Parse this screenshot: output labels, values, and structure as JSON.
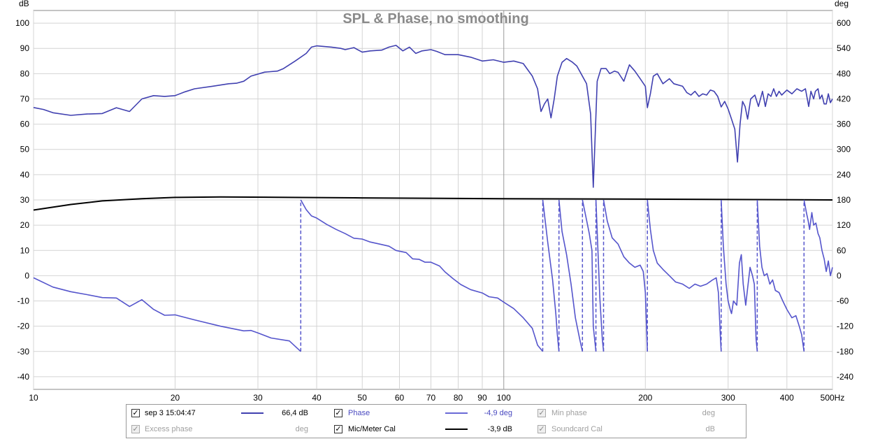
{
  "chart_data": {
    "type": "line",
    "title": "SPL & Phase, no smoothing",
    "y_left_unit": "dB",
    "y_right_unit": "deg",
    "x_unit": "Hz",
    "xscale": "log",
    "xlim": [
      10,
      500
    ],
    "ylim_left": [
      -45,
      105
    ],
    "ylim_right": [
      -270,
      630
    ],
    "grid": true,
    "x_ticks": [
      {
        "v": 10,
        "label": "10"
      },
      {
        "v": 20,
        "label": "20"
      },
      {
        "v": 30,
        "label": "30"
      },
      {
        "v": 40,
        "label": "40"
      },
      {
        "v": 50,
        "label": "50"
      },
      {
        "v": 60,
        "label": "60"
      },
      {
        "v": 70,
        "label": "70"
      },
      {
        "v": 80,
        "label": "80"
      },
      {
        "v": 90,
        "label": "90"
      },
      {
        "v": 100,
        "label": "100"
      },
      {
        "v": 200,
        "label": "200"
      },
      {
        "v": 300,
        "label": "300"
      },
      {
        "v": 400,
        "label": "400"
      },
      {
        "v": 500,
        "label": "500Hz"
      }
    ],
    "y_left_ticks": [
      100,
      90,
      80,
      70,
      60,
      50,
      40,
      30,
      20,
      10,
      0,
      -10,
      -20,
      -30,
      -40
    ],
    "y_right_ticks": [
      600,
      540,
      480,
      420,
      360,
      300,
      240,
      180,
      120,
      60,
      0,
      -60,
      -120,
      -180,
      -240
    ],
    "series": [
      {
        "name": "sep 3 15:04:47",
        "axis": "dB",
        "color": "#4040b0",
        "points": [
          [
            10,
            66.6
          ],
          [
            10.5,
            65.8
          ],
          [
            11,
            64.5
          ],
          [
            12,
            63.5
          ],
          [
            13,
            64
          ],
          [
            14,
            64.2
          ],
          [
            15,
            66.5
          ],
          [
            16,
            65
          ],
          [
            17,
            70
          ],
          [
            18,
            71.3
          ],
          [
            19,
            71
          ],
          [
            20,
            71.3
          ],
          [
            21,
            72.8
          ],
          [
            22,
            74
          ],
          [
            24,
            75
          ],
          [
            26,
            76
          ],
          [
            27,
            76.2
          ],
          [
            28,
            77
          ],
          [
            29,
            79
          ],
          [
            31,
            80.6
          ],
          [
            33,
            81
          ],
          [
            34,
            82
          ],
          [
            36,
            85
          ],
          [
            38,
            88
          ],
          [
            39,
            90.5
          ],
          [
            40,
            91
          ],
          [
            43,
            90.5
          ],
          [
            45,
            90
          ],
          [
            46,
            89.5
          ],
          [
            48,
            90.3
          ],
          [
            50,
            88.5
          ],
          [
            52,
            89
          ],
          [
            55,
            89.3
          ],
          [
            57,
            90.5
          ],
          [
            59,
            91.2
          ],
          [
            61,
            89
          ],
          [
            63,
            90.5
          ],
          [
            65,
            88
          ],
          [
            67,
            89
          ],
          [
            70,
            89.5
          ],
          [
            72,
            88.8
          ],
          [
            75,
            87.5
          ],
          [
            80,
            87.5
          ],
          [
            85,
            86.5
          ],
          [
            90,
            85
          ],
          [
            95,
            85.5
          ],
          [
            100,
            84.5
          ],
          [
            105,
            85
          ],
          [
            110,
            84
          ],
          [
            115,
            79
          ],
          [
            118,
            74
          ],
          [
            120,
            65
          ],
          [
            122,
            68
          ],
          [
            124,
            70
          ],
          [
            126,
            62.5
          ],
          [
            128,
            70
          ],
          [
            130,
            79
          ],
          [
            133,
            84.5
          ],
          [
            136,
            86
          ],
          [
            140,
            84.5
          ],
          [
            143,
            83
          ],
          [
            146,
            80
          ],
          [
            150,
            76
          ],
          [
            153,
            64
          ],
          [
            155,
            35
          ],
          [
            158,
            77
          ],
          [
            161,
            82
          ],
          [
            165,
            82
          ],
          [
            168,
            80
          ],
          [
            172,
            81
          ],
          [
            175,
            80.5
          ],
          [
            180,
            77
          ],
          [
            185,
            83.5
          ],
          [
            190,
            81
          ],
          [
            195,
            78
          ],
          [
            200,
            75
          ],
          [
            202,
            66.5
          ],
          [
            205,
            72
          ],
          [
            208,
            79
          ],
          [
            212,
            80
          ],
          [
            218,
            76
          ],
          [
            225,
            78
          ],
          [
            230,
            76
          ],
          [
            240,
            75
          ],
          [
            245,
            72.5
          ],
          [
            250,
            71.5
          ],
          [
            255,
            73
          ],
          [
            260,
            71
          ],
          [
            265,
            72
          ],
          [
            270,
            71.5
          ],
          [
            275,
            73.5
          ],
          [
            280,
            73
          ],
          [
            285,
            71
          ],
          [
            290,
            66.8
          ],
          [
            295,
            69
          ],
          [
            300,
            66
          ],
          [
            305,
            62
          ],
          [
            310,
            58
          ],
          [
            314,
            45
          ],
          [
            318,
            60
          ],
          [
            322,
            69
          ],
          [
            326,
            67
          ],
          [
            330,
            62
          ],
          [
            335,
            70
          ],
          [
            342,
            71.5
          ],
          [
            348,
            67
          ],
          [
            355,
            73
          ],
          [
            360,
            67
          ],
          [
            365,
            72
          ],
          [
            370,
            71
          ],
          [
            375,
            74
          ],
          [
            380,
            71
          ],
          [
            385,
            73
          ],
          [
            390,
            71.5
          ],
          [
            400,
            73.5
          ],
          [
            410,
            72
          ],
          [
            420,
            74
          ],
          [
            430,
            73
          ],
          [
            438,
            74
          ],
          [
            445,
            67
          ],
          [
            450,
            73
          ],
          [
            456,
            70
          ],
          [
            460,
            73
          ],
          [
            466,
            74
          ],
          [
            470,
            70
          ],
          [
            475,
            71.5
          ],
          [
            480,
            68
          ],
          [
            485,
            68
          ],
          [
            490,
            72
          ],
          [
            495,
            68.5
          ],
          [
            500,
            70
          ]
        ]
      },
      {
        "name": "Phase",
        "axis": "deg",
        "color": "#5555cc",
        "points": [
          [
            10,
            -5
          ],
          [
            11,
            -27
          ],
          [
            12,
            -38
          ],
          [
            13,
            -45
          ],
          [
            14,
            -52
          ],
          [
            15,
            -53
          ],
          [
            16,
            -73
          ],
          [
            17,
            -57
          ],
          [
            18,
            -80
          ],
          [
            19,
            -94
          ],
          [
            20,
            -93
          ],
          [
            22,
            -105
          ],
          [
            25,
            -120
          ],
          [
            28,
            -131
          ],
          [
            29,
            -130
          ],
          [
            30,
            -136
          ],
          [
            32,
            -148
          ],
          [
            35,
            -155
          ],
          [
            37,
            -180
          ],
          "B",
          [
            37,
            180
          ],
          [
            38,
            157
          ],
          [
            39,
            142
          ],
          [
            40,
            137
          ],
          [
            42,
            122
          ],
          [
            44,
            110
          ],
          [
            46,
            100
          ],
          [
            48,
            89
          ],
          [
            50,
            87
          ],
          [
            52,
            80
          ],
          [
            55,
            74
          ],
          [
            57,
            70
          ],
          [
            59,
            60
          ],
          [
            62,
            55
          ],
          [
            64,
            40
          ],
          [
            66,
            39
          ],
          [
            68,
            32
          ],
          [
            70,
            32
          ],
          [
            73,
            23
          ],
          [
            75,
            9
          ],
          [
            78,
            -7
          ],
          [
            81,
            -21
          ],
          [
            85,
            -33
          ],
          [
            90,
            -41
          ],
          [
            93,
            -50
          ],
          [
            97,
            -53
          ],
          [
            100,
            -63
          ],
          [
            105,
            -78
          ],
          [
            110,
            -100
          ],
          [
            115,
            -125
          ],
          [
            118,
            -165
          ],
          [
            121,
            -180
          ],
          "B",
          [
            121,
            180
          ],
          [
            124,
            80
          ],
          [
            127,
            -10
          ],
          [
            129,
            -90
          ],
          [
            130,
            -140
          ],
          [
            131,
            -180
          ],
          "B",
          [
            131,
            180
          ],
          [
            133,
            105
          ],
          [
            136,
            50
          ],
          [
            139,
            -20
          ],
          [
            142,
            -100
          ],
          [
            145,
            -150
          ],
          [
            147,
            -180
          ],
          "B",
          [
            147,
            180
          ],
          [
            150,
            132
          ],
          [
            152,
            100
          ],
          [
            153,
            80
          ],
          [
            154,
            60
          ],
          [
            155,
            -120
          ],
          [
            157,
            -180
          ],
          "B",
          [
            157,
            180
          ],
          [
            160,
            -50
          ],
          [
            162,
            -150
          ],
          [
            163,
            -180
          ],
          "B",
          [
            163,
            180
          ],
          [
            166,
            130
          ],
          [
            170,
            90
          ],
          [
            175,
            75
          ],
          [
            180,
            45
          ],
          [
            185,
            30
          ],
          [
            190,
            20
          ],
          [
            195,
            25
          ],
          [
            198,
            10
          ],
          [
            200,
            -40
          ],
          [
            202,
            -180
          ],
          "B",
          [
            202,
            180
          ],
          [
            205,
            110
          ],
          [
            208,
            60
          ],
          [
            212,
            30
          ],
          [
            218,
            15
          ],
          [
            225,
            0
          ],
          [
            232,
            -15
          ],
          [
            240,
            -20
          ],
          [
            248,
            -30
          ],
          [
            255,
            -20
          ],
          [
            262,
            -25
          ],
          [
            270,
            -20
          ],
          [
            278,
            -10
          ],
          [
            283,
            -5
          ],
          [
            286,
            -40
          ],
          [
            289,
            -150
          ],
          [
            290,
            -180
          ],
          "B",
          [
            290,
            180
          ],
          [
            293,
            70
          ],
          [
            297,
            -20
          ],
          [
            300,
            -60
          ],
          [
            303,
            -80
          ],
          [
            305,
            -90
          ],
          [
            308,
            -60
          ],
          [
            313,
            -70
          ],
          [
            317,
            30
          ],
          [
            320,
            50
          ],
          [
            323,
            -20
          ],
          [
            327,
            -70
          ],
          [
            330,
            -30
          ],
          [
            334,
            20
          ],
          [
            338,
            0
          ],
          [
            341,
            -20
          ],
          [
            344,
            -150
          ],
          [
            346,
            -180
          ],
          "B",
          [
            346,
            180
          ],
          [
            350,
            70
          ],
          [
            354,
            20
          ],
          [
            358,
            0
          ],
          [
            363,
            5
          ],
          [
            368,
            -20
          ],
          [
            373,
            -10
          ],
          [
            378,
            -35
          ],
          [
            385,
            -40
          ],
          [
            392,
            -60
          ],
          [
            400,
            -80
          ],
          [
            410,
            -100
          ],
          [
            418,
            -95
          ],
          [
            425,
            -120
          ],
          [
            430,
            -140
          ],
          [
            435,
            -180
          ],
          "B",
          [
            435,
            180
          ],
          [
            440,
            150
          ],
          [
            444,
            130
          ],
          [
            447,
            110
          ],
          [
            452,
            150
          ],
          [
            456,
            120
          ],
          [
            461,
            125
          ],
          [
            466,
            100
          ],
          [
            470,
            90
          ],
          [
            475,
            60
          ],
          [
            480,
            40
          ],
          [
            485,
            10
          ],
          [
            490,
            35
          ],
          [
            495,
            0
          ],
          [
            500,
            20
          ]
        ]
      },
      {
        "name": "Mic/Meter Cal",
        "axis": "dB",
        "color": "#000000",
        "points": [
          [
            10,
            26
          ],
          [
            12,
            28.2
          ],
          [
            14,
            29.6
          ],
          [
            17,
            30.5
          ],
          [
            20,
            31
          ],
          [
            25,
            31.2
          ],
          [
            35,
            31
          ],
          [
            50,
            30.8
          ],
          [
            100,
            30.5
          ],
          [
            200,
            30.3
          ],
          [
            500,
            30
          ]
        ]
      }
    ],
    "legend": [
      {
        "checked": true,
        "enabled": true,
        "name": "sep 3 15:04:47",
        "value": "66,4 dB",
        "color": "#4040b0"
      },
      {
        "checked": true,
        "enabled": true,
        "name": "Phase",
        "value": "-4,9 deg",
        "color": "#5555cc"
      },
      {
        "checked": true,
        "enabled": false,
        "name": "Min phase",
        "value": "deg",
        "color": ""
      },
      {
        "checked": true,
        "enabled": false,
        "name": "Excess phase",
        "value": "deg",
        "color": ""
      },
      {
        "checked": true,
        "enabled": true,
        "name": "Mic/Meter Cal",
        "value": "-3,9 dB",
        "color": "#000000"
      },
      {
        "checked": true,
        "enabled": false,
        "name": "Soundcard Cal",
        "value": "dB",
        "color": ""
      }
    ]
  }
}
